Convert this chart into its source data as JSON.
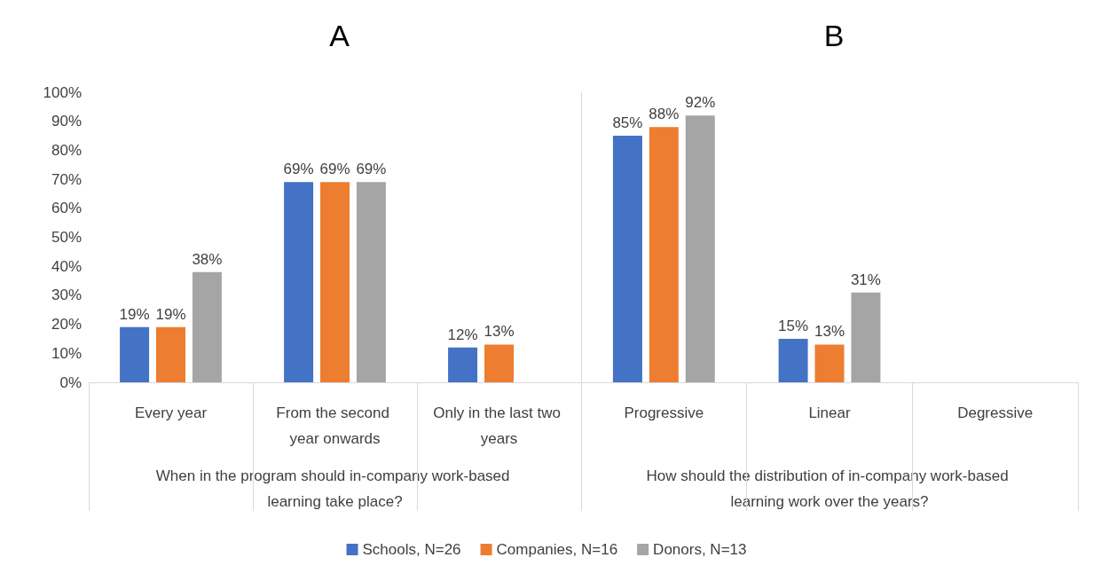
{
  "chart_data": [
    {
      "type": "bar",
      "title": "A",
      "xlabel": "When in the program should in-company work-based learning take place?",
      "categories": [
        "Every year",
        "From the second year onwards",
        "Only in the last two years"
      ],
      "series": [
        {
          "name": "Schools, N=26",
          "color": "#4472c4",
          "values": [
            19,
            69,
            12
          ],
          "value_labels": [
            "19%",
            "69%",
            "12%"
          ]
        },
        {
          "name": "Companies, N=16",
          "color": "#ed7d31",
          "values": [
            19,
            69,
            13
          ],
          "value_labels": [
            "19%",
            "69%",
            "13%"
          ]
        },
        {
          "name": "Donors, N=13",
          "color": "#a5a5a5",
          "values": [
            38,
            69,
            null
          ],
          "value_labels": [
            "38%",
            "69%",
            null
          ]
        }
      ],
      "ylim": [
        0,
        100
      ],
      "yticks": [
        {
          "value": 0,
          "label": "0%"
        },
        {
          "value": 10,
          "label": "10%"
        },
        {
          "value": 20,
          "label": "20%"
        },
        {
          "value": 30,
          "label": "30%"
        },
        {
          "value": 40,
          "label": "40%"
        },
        {
          "value": 50,
          "label": "50%"
        },
        {
          "value": 60,
          "label": "60%"
        },
        {
          "value": 70,
          "label": "70%"
        },
        {
          "value": 80,
          "label": "80%"
        },
        {
          "value": 90,
          "label": "90%"
        },
        {
          "value": 100,
          "label": "100%"
        }
      ],
      "grid": false,
      "legend": "bottom"
    },
    {
      "type": "bar",
      "title": "B",
      "xlabel": "How should the distribution of in-company work-based learning work over the years?",
      "categories": [
        "Progressive",
        "Linear",
        "Degressive"
      ],
      "series": [
        {
          "color": "#4472c4",
          "values": [
            85,
            15,
            null
          ],
          "value_labels": [
            "85%",
            "15%",
            null
          ]
        },
        {
          "color": "#ed7d31",
          "values": [
            88,
            13,
            null
          ],
          "value_labels": [
            "88%",
            "13%",
            null
          ]
        },
        {
          "color": "#a5a5a5",
          "values": [
            92,
            31,
            null
          ],
          "value_labels": [
            "92%",
            "31%",
            null
          ]
        }
      ],
      "ylim": [
        0,
        100
      ],
      "grid": false,
      "tick_labels": "x"
    }
  ]
}
